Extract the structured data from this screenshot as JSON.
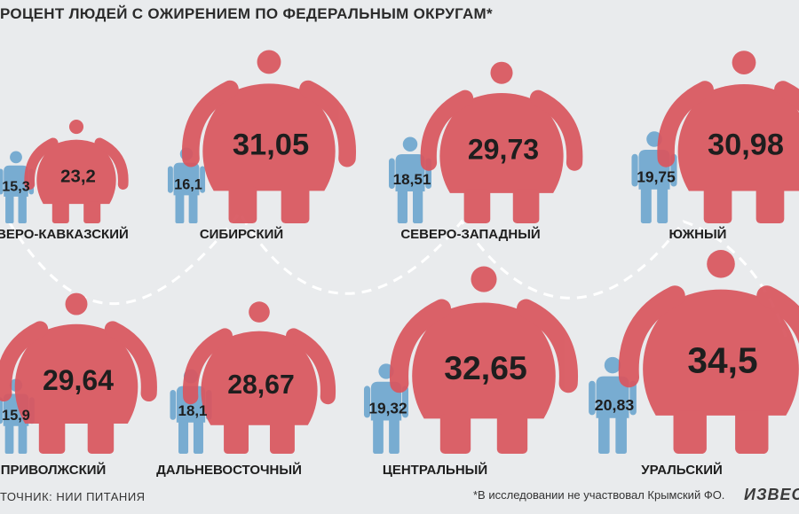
{
  "header": {
    "title": "РОЦЕНТ ЛЮДЕЙ С ОЖИРЕНИЕМ ПО ФЕДЕРАЛЬНЫМ ОКРУГАМ*"
  },
  "footer": {
    "source": "ТОЧНИК: НИИ ПИТАНИЯ",
    "footnote": "*В исследовании не участвовал Крымский ФО.",
    "logo": "ИЗВЕСТИЯ"
  },
  "colors": {
    "blue": "#6fa7cf",
    "red": "#d9575f",
    "background": "#e9ebed",
    "dashes": "#ffffff",
    "label": "#1e1e1e"
  },
  "chart_data": {
    "type": "pictograph",
    "title": "РОЦЕНТ ЛЮДЕЙ С ОЖИРЕНИЕМ ПО ФЕДЕРАЛЬНЫМ ОКРУГАМ*",
    "categories": [
      "СЕВЕРО-КАВКАЗСКИЙ",
      "СИБИРСКИЙ",
      "СЕВЕРО-ЗАПАДНЫЙ",
      "ЮЖНЫЙ",
      "ПРИВОЛЖСКИЙ",
      "ДАЛЬНЕВОСТОЧНЫЙ",
      "ЦЕНТРАЛЬНЫЙ",
      "УРАЛЬСКИЙ"
    ],
    "series": [
      {
        "values": [
          15.3,
          16.1,
          18.51,
          19.75,
          15.9,
          18.1,
          19.32,
          20.83
        ],
        "labels": [
          "15,3",
          "16,1",
          "18,51",
          "19,75",
          "15,9",
          "18,1",
          "19,32",
          "20,83"
        ]
      },
      {
        "values": [
          23.2,
          31.05,
          29.73,
          30.98,
          29.64,
          28.67,
          32.65,
          34.5
        ],
        "labels": [
          "23,2",
          "31,05",
          "29,73",
          "30,98",
          "29,64",
          "28,67",
          "32,65",
          "34,5"
        ]
      }
    ]
  }
}
